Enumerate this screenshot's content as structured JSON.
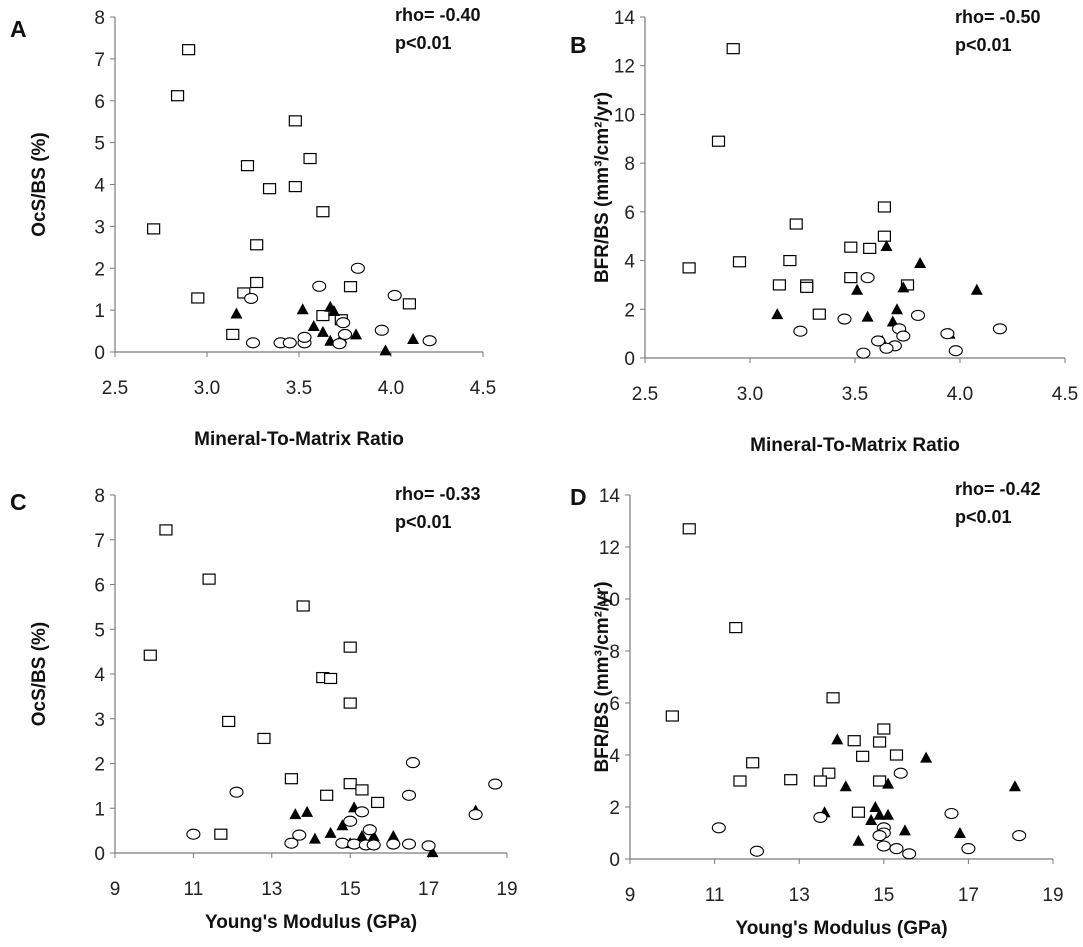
{
  "chart_data": [
    {
      "panel": "A",
      "type": "scatter",
      "xlabel": "Mineral-To-Matrix Ratio",
      "ylabel": "OcS/BS (%)",
      "xlim": [
        2.5,
        4.5
      ],
      "ylim": [
        0,
        8
      ],
      "xticks": [
        "2.5",
        "3.0",
        "3.5",
        "4.0",
        "4.5"
      ],
      "yticks": [
        "0",
        "1",
        "2",
        "3",
        "4",
        "5",
        "6",
        "7",
        "8"
      ],
      "stats": [
        "rho= -0.40",
        "p<0.01"
      ],
      "series": [
        {
          "marker": "square",
          "points": [
            [
              2.9,
              7.22
            ],
            [
              2.84,
              6.12
            ],
            [
              3.48,
              5.52
            ],
            [
              3.56,
              4.62
            ],
            [
              3.22,
              4.45
            ],
            [
              3.48,
              3.95
            ],
            [
              3.34,
              3.9
            ],
            [
              3.63,
              3.35
            ],
            [
              2.71,
              2.94
            ],
            [
              3.27,
              2.56
            ],
            [
              3.27,
              1.66
            ],
            [
              3.78,
              1.56
            ],
            [
              3.2,
              1.41
            ],
            [
              2.95,
              1.29
            ],
            [
              4.1,
              1.15
            ],
            [
              3.14,
              0.42
            ],
            [
              3.63,
              0.87
            ],
            [
              3.73,
              0.77
            ]
          ]
        },
        {
          "marker": "triangle",
          "points": [
            [
              3.16,
              0.92
            ],
            [
              3.52,
              1.02
            ],
            [
              3.67,
              1.08
            ],
            [
              3.69,
              0.98
            ],
            [
              3.58,
              0.62
            ],
            [
              3.63,
              0.48
            ],
            [
              3.73,
              0.33
            ],
            [
              3.81,
              0.42
            ],
            [
              4.12,
              0.31
            ],
            [
              3.97,
              0.04
            ],
            [
              3.67,
              0.27
            ]
          ]
        },
        {
          "marker": "circle",
          "points": [
            [
              3.82,
              2.0
            ],
            [
              3.61,
              1.57
            ],
            [
              4.02,
              1.35
            ],
            [
              3.24,
              1.28
            ],
            [
              3.74,
              0.7
            ],
            [
              3.95,
              0.52
            ],
            [
              3.75,
              0.42
            ],
            [
              3.72,
              0.2
            ],
            [
              3.25,
              0.22
            ],
            [
              3.4,
              0.22
            ],
            [
              3.45,
              0.22
            ],
            [
              3.53,
              0.22
            ],
            [
              3.53,
              0.35
            ],
            [
              4.21,
              0.27
            ]
          ]
        }
      ]
    },
    {
      "panel": "B",
      "type": "scatter",
      "xlabel": "Mineral-To-Matrix Ratio",
      "ylabel": "BFR/BS (mm³/cm²/yr)",
      "xlim": [
        2.5,
        4.5
      ],
      "ylim": [
        0,
        14
      ],
      "xticks": [
        "2.5",
        "3.0",
        "3.5",
        "4.0",
        "4.5"
      ],
      "yticks": [
        "0",
        "2",
        "4",
        "6",
        "8",
        "10",
        "12",
        "14"
      ],
      "stats": [
        "rho= -0.50",
        "p<0.01"
      ],
      "series": [
        {
          "marker": "square",
          "points": [
            [
              2.92,
              12.7
            ],
            [
              2.85,
              8.9
            ],
            [
              3.64,
              6.2
            ],
            [
              3.22,
              5.5
            ],
            [
              3.64,
              5.0
            ],
            [
              3.48,
              4.55
            ],
            [
              3.57,
              4.5
            ],
            [
              3.19,
              4.0
            ],
            [
              2.95,
              3.95
            ],
            [
              2.71,
              3.7
            ],
            [
              3.48,
              3.3
            ],
            [
              3.75,
              3.0
            ],
            [
              3.27,
              3.0
            ],
            [
              3.27,
              2.9
            ],
            [
              3.14,
              3.0
            ],
            [
              3.33,
              1.8
            ]
          ]
        },
        {
          "marker": "triangle",
          "points": [
            [
              3.65,
              4.6
            ],
            [
              3.81,
              3.9
            ],
            [
              4.08,
              2.8
            ],
            [
              3.51,
              2.8
            ],
            [
              3.73,
              2.9
            ],
            [
              3.7,
              2.0
            ],
            [
              3.68,
              1.5
            ],
            [
              3.13,
              1.8
            ],
            [
              3.56,
              1.7
            ],
            [
              3.73,
              1.1
            ],
            [
              3.95,
              1.0
            ],
            [
              3.63,
              0.7
            ]
          ]
        },
        {
          "marker": "circle",
          "points": [
            [
              3.56,
              3.3
            ],
            [
              4.19,
              1.2
            ],
            [
              3.8,
              1.75
            ],
            [
              3.45,
              1.6
            ],
            [
              3.24,
              1.1
            ],
            [
              3.71,
              1.2
            ],
            [
              3.73,
              0.9
            ],
            [
              3.94,
              1.0
            ],
            [
              3.69,
              0.5
            ],
            [
              3.65,
              0.4
            ],
            [
              3.54,
              0.2
            ],
            [
              3.98,
              0.3
            ],
            [
              3.61,
              0.7
            ]
          ]
        }
      ]
    },
    {
      "panel": "C",
      "type": "scatter",
      "xlabel": "Young's Modulus (GPa)",
      "ylabel": "OcS/BS (%)",
      "xlim": [
        9,
        19
      ],
      "ylim": [
        0,
        8
      ],
      "xticks": [
        "9",
        "11",
        "13",
        "15",
        "17",
        "19"
      ],
      "yticks": [
        "0",
        "1",
        "2",
        "3",
        "4",
        "5",
        "6",
        "7",
        "8"
      ],
      "stats": [
        "rho= -0.33",
        "p<0.01"
      ],
      "series": [
        {
          "marker": "square",
          "points": [
            [
              10.3,
              7.22
            ],
            [
              11.4,
              6.12
            ],
            [
              13.8,
              5.52
            ],
            [
              15.0,
              4.6
            ],
            [
              9.9,
              4.42
            ],
            [
              14.3,
              3.92
            ],
            [
              14.5,
              3.9
            ],
            [
              15.0,
              3.35
            ],
            [
              11.9,
              2.94
            ],
            [
              12.8,
              2.56
            ],
            [
              13.5,
              1.66
            ],
            [
              14.4,
              1.29
            ],
            [
              15.0,
              1.55
            ],
            [
              15.3,
              1.41
            ],
            [
              15.7,
              1.13
            ],
            [
              11.7,
              0.42
            ]
          ]
        },
        {
          "marker": "triangle",
          "points": [
            [
              13.6,
              0.87
            ],
            [
              13.9,
              0.92
            ],
            [
              14.1,
              0.32
            ],
            [
              14.5,
              0.45
            ],
            [
              14.8,
              0.62
            ],
            [
              15.1,
              1.02
            ],
            [
              15.3,
              0.38
            ],
            [
              15.6,
              0.38
            ],
            [
              16.1,
              0.38
            ],
            [
              17.1,
              0.02
            ],
            [
              18.2,
              0.95
            ],
            [
              15.0,
              0.22
            ]
          ]
        },
        {
          "marker": "circle",
          "points": [
            [
              16.6,
              2.02
            ],
            [
              18.7,
              1.54
            ],
            [
              12.1,
              1.36
            ],
            [
              16.5,
              1.29
            ],
            [
              18.2,
              0.86
            ],
            [
              15.3,
              0.92
            ],
            [
              15.0,
              0.71
            ],
            [
              11.0,
              0.42
            ],
            [
              13.7,
              0.4
            ],
            [
              13.5,
              0.22
            ],
            [
              14.8,
              0.22
            ],
            [
              15.1,
              0.2
            ],
            [
              15.4,
              0.18
            ],
            [
              15.6,
              0.18
            ],
            [
              16.1,
              0.2
            ],
            [
              16.5,
              0.2
            ],
            [
              17.0,
              0.16
            ],
            [
              15.5,
              0.52
            ]
          ]
        }
      ]
    },
    {
      "panel": "D",
      "type": "scatter",
      "xlabel": "Young's Modulus (GPa)",
      "ylabel": "BFR/BS (mm³/cm²/yr)",
      "xlim": [
        9,
        19
      ],
      "ylim": [
        0,
        14
      ],
      "xticks": [
        "9",
        "11",
        "13",
        "15",
        "17",
        "19"
      ],
      "yticks": [
        "0",
        "2",
        "4",
        "6",
        "8",
        "10",
        "12",
        "14"
      ],
      "stats": [
        "rho= -0.42",
        "p<0.01"
      ],
      "series": [
        {
          "marker": "square",
          "points": [
            [
              10.4,
              12.7
            ],
            [
              11.5,
              8.9
            ],
            [
              13.8,
              6.2
            ],
            [
              10.0,
              5.5
            ],
            [
              15.0,
              5.0
            ],
            [
              14.3,
              4.55
            ],
            [
              14.9,
              4.5
            ],
            [
              14.5,
              3.95
            ],
            [
              15.3,
              4.0
            ],
            [
              11.9,
              3.7
            ],
            [
              13.7,
              3.3
            ],
            [
              11.6,
              3.0
            ],
            [
              12.8,
              3.05
            ],
            [
              13.5,
              3.0
            ],
            [
              14.9,
              3.0
            ],
            [
              14.4,
              1.8
            ]
          ]
        },
        {
          "marker": "triangle",
          "points": [
            [
              13.9,
              4.6
            ],
            [
              16.0,
              3.9
            ],
            [
              18.1,
              2.8
            ],
            [
              14.1,
              2.8
            ],
            [
              15.1,
              2.9
            ],
            [
              14.8,
              2.0
            ],
            [
              14.7,
              1.5
            ],
            [
              13.6,
              1.8
            ],
            [
              15.1,
              1.7
            ],
            [
              15.5,
              1.1
            ],
            [
              16.8,
              1.0
            ],
            [
              14.4,
              0.7
            ],
            [
              14.9,
              1.7
            ]
          ]
        },
        {
          "marker": "circle",
          "points": [
            [
              15.4,
              3.3
            ],
            [
              11.1,
              1.2
            ],
            [
              16.6,
              1.75
            ],
            [
              13.5,
              1.6
            ],
            [
              15.0,
              1.2
            ],
            [
              15.0,
              1.0
            ],
            [
              14.9,
              0.9
            ],
            [
              18.2,
              0.9
            ],
            [
              15.0,
              0.5
            ],
            [
              15.3,
              0.4
            ],
            [
              12.0,
              0.3
            ],
            [
              15.6,
              0.2
            ],
            [
              17.0,
              0.4
            ]
          ]
        }
      ]
    }
  ]
}
